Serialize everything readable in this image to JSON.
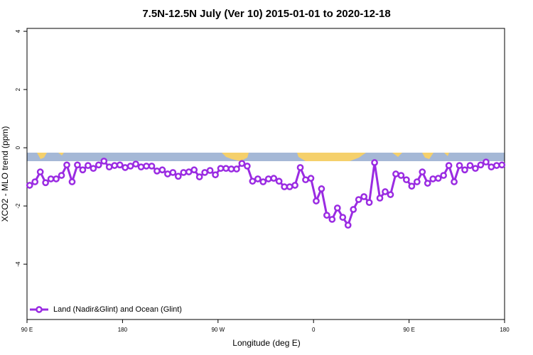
{
  "chart_data": {
    "type": "line",
    "title": "7.5N-12.5N July (Ver 10)   2015-01-01 to 2020-12-18",
    "x_label": "Longitude (deg E)",
    "y_label": "XCO2 - MLO trend (ppm)",
    "xlim": [
      90,
      540
    ],
    "ylim": [
      -5.9,
      4.1
    ],
    "xticks": [
      {
        "value": 90,
        "label": "90 E"
      },
      180,
      {
        "value": 270,
        "label": "90 W"
      },
      {
        "value": 360,
        "label": "0"
      },
      {
        "value": 450,
        "label": "90 E"
      },
      {
        "value": 540,
        "label": "180"
      }
    ],
    "yticks": [
      -4,
      -2,
      0,
      2,
      4
    ],
    "legend": "bottom-left",
    "series": [
      {
        "name": "Land (Nadir&Glint) and Ocean (Glint)",
        "color": "#9a2be2",
        "x": [
          92.5,
          97.5,
          102.5,
          107.5,
          112.5,
          117.5,
          122.5,
          127.5,
          132.5,
          137.5,
          142.5,
          147.5,
          152.5,
          157.5,
          162.5,
          167.5,
          172.5,
          177.5,
          182.5,
          187.5,
          192.5,
          197.5,
          202.5,
          207.5,
          212.5,
          217.5,
          222.5,
          227.5,
          232.5,
          237.5,
          242.5,
          247.5,
          252.5,
          257.5,
          262.5,
          267.5,
          272.5,
          277.5,
          282.5,
          287.5,
          292.5,
          297.5,
          302.5,
          307.5,
          312.5,
          317.5,
          322.5,
          327.5,
          332.5,
          337.5,
          342.5,
          347.5,
          352.5,
          357.5,
          362.5,
          367.5,
          372.5,
          377.5,
          382.5,
          387.5,
          392.5,
          397.5,
          402.5,
          407.5,
          412.5,
          417.5,
          422.5,
          427.5,
          432.5,
          437.5,
          442.5,
          447.5,
          452.5,
          457.5,
          462.5,
          467.5,
          472.5,
          477.5,
          482.5,
          487.5,
          492.5,
          497.5,
          502.5,
          507.5,
          512.5,
          517.5,
          522.5,
          527.5,
          532.5,
          537.5
        ],
        "values": [
          -1.29,
          -1.17,
          -0.83,
          -1.2,
          -1.07,
          -1.07,
          -0.95,
          -0.59,
          -1.17,
          -0.59,
          -0.76,
          -0.61,
          -0.71,
          -0.59,
          -0.46,
          -0.66,
          -0.61,
          -0.59,
          -0.68,
          -0.63,
          -0.56,
          -0.66,
          -0.63,
          -0.63,
          -0.8,
          -0.76,
          -0.9,
          -0.85,
          -0.98,
          -0.85,
          -0.83,
          -0.76,
          -1.0,
          -0.85,
          -0.78,
          -0.93,
          -0.71,
          -0.71,
          -0.73,
          -0.73,
          -0.54,
          -0.63,
          -1.15,
          -1.07,
          -1.17,
          -1.07,
          -1.05,
          -1.15,
          -1.34,
          -1.34,
          -1.29,
          -0.68,
          -1.1,
          -1.05,
          -1.83,
          -1.41,
          -2.32,
          -2.46,
          -2.07,
          -2.39,
          -2.66,
          -2.12,
          -1.78,
          -1.68,
          -1.88,
          -0.51,
          -1.73,
          -1.51,
          -1.61,
          -0.9,
          -0.95,
          -1.1,
          -1.32,
          -1.17,
          -0.83,
          -1.22,
          -1.07,
          -1.05,
          -0.95,
          -0.61,
          -1.17,
          -0.61,
          -0.76,
          -0.61,
          -0.71,
          -0.59,
          -0.49,
          -0.66,
          -0.61,
          -0.59
        ]
      }
    ]
  }
}
